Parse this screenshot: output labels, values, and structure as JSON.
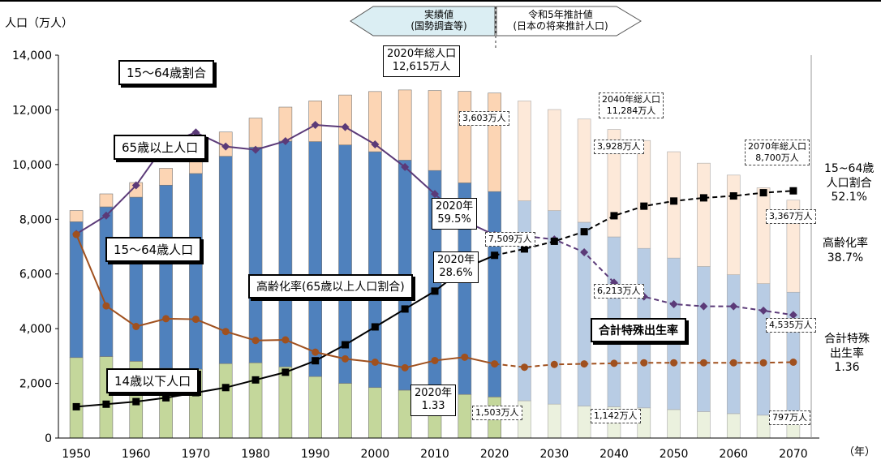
{
  "y_axis_label": "人口（万人）",
  "x_axis_unit": "（年）",
  "header": {
    "actual": {
      "line1": "実績値",
      "line2": "(国勢調査等)"
    },
    "projection": {
      "line1": "令和5年推計値",
      "line2": "(日本の将来推計人口)"
    }
  },
  "legend_boxes": {
    "working_ratio": "15～64歳割合",
    "elderly_pop": "65歳以上人口",
    "working_pop": "15～64歳人口",
    "child_pop": "14歳以下人口",
    "aging_rate": "高齢化率(65歳以上人口割合)",
    "fertility": "合計特殊出生率"
  },
  "annotations": {
    "total_2020": {
      "line1": "2020年総人口",
      "line2": "12,615万人"
    },
    "total_2040": {
      "line1": "2040年総人口",
      "line2": "11,284万人"
    },
    "total_2070": {
      "line1": "2070年総人口",
      "line2": "8,700万人"
    },
    "elderly_2020": "3,603万人",
    "working_2020": "7,509万人",
    "child_2020": "1,503万人",
    "elderly_2040": "3,928万人",
    "working_2040": "6,213万人",
    "child_2040": "1,142万人",
    "elderly_2070": "3,367万人",
    "working_2070": "4,535万人",
    "child_2070": "797万人",
    "ratio_2020": {
      "line1": "2020年",
      "line2": "59.5%"
    },
    "aging_2020": {
      "line1": "2020年",
      "line2": "28.6%"
    },
    "fertility_2020": {
      "line1": "2020年",
      "line2": "1.33"
    }
  },
  "right_labels": {
    "ratio": {
      "line1": "15~64歳",
      "line2": "人口割合",
      "line3": "52.1%"
    },
    "aging": {
      "line1": "高齢化率",
      "line2": "38.7%"
    },
    "fertility": {
      "line1": "合計特殊",
      "line2": "出生率",
      "line3": "1.36"
    }
  },
  "colors": {
    "child": "#c4d79b",
    "working": "#4f81bd",
    "elderly": "#fcd5b4",
    "child_proj": "#ebf1de",
    "working_proj": "#b8cce4",
    "elderly_proj": "#fde9d9",
    "ratio_line": "#5b3a78",
    "aging_line": "#000000",
    "fertility_line": "#a0501e"
  },
  "chart_data": {
    "type": "bar",
    "title": "",
    "xlabel": "（年）",
    "ylabel": "人口（万人）",
    "ylim": [
      0,
      14000
    ],
    "yticks": [
      0,
      2000,
      4000,
      6000,
      8000,
      10000,
      12000,
      14000
    ],
    "xticks": [
      1950,
      1960,
      1970,
      1980,
      1990,
      2000,
      2010,
      2020,
      2030,
      2040,
      2050,
      2060,
      2070
    ],
    "projection_start": 2025,
    "categories": [
      1950,
      1955,
      1960,
      1965,
      1970,
      1975,
      1980,
      1985,
      1990,
      1995,
      2000,
      2005,
      2010,
      2015,
      2020,
      2025,
      2030,
      2035,
      2040,
      2045,
      2050,
      2055,
      2060,
      2065,
      2070
    ],
    "series": [
      {
        "name": "14歳以下人口",
        "values": [
          2943,
          2980,
          2807,
          2553,
          2515,
          2722,
          2751,
          2603,
          2249,
          2001,
          1847,
          1752,
          1680,
          1595,
          1503,
          1363,
          1240,
          1169,
          1142,
          1103,
          1041,
          966,
          893,
          836,
          797
        ]
      },
      {
        "name": "15～64歳人口",
        "values": [
          4966,
          5473,
          6000,
          6693,
          7157,
          7581,
          7883,
          8251,
          8590,
          8716,
          8622,
          8409,
          8103,
          7735,
          7509,
          7310,
          7076,
          6722,
          6213,
          5832,
          5540,
          5307,
          5078,
          4809,
          4535
        ]
      },
      {
        "name": "65歳以上人口",
        "values": [
          411,
          475,
          535,
          618,
          733,
          887,
          1065,
          1247,
          1489,
          1826,
          2201,
          2567,
          2925,
          3347,
          3603,
          3653,
          3696,
          3773,
          3928,
          3945,
          3888,
          3777,
          3644,
          3506,
          3367
        ]
      }
    ],
    "line_series": [
      {
        "name": "15～64歳割合",
        "unit": "%",
        "values": [
          59.6,
          61.3,
          64.1,
          68.0,
          69.0,
          67.7,
          67.4,
          68.2,
          69.7,
          69.5,
          67.9,
          65.8,
          63.3,
          60.8,
          59.5,
          59.4,
          59.1,
          57.9,
          55.1,
          53.8,
          53.1,
          52.9,
          52.9,
          52.5,
          52.1
        ]
      },
      {
        "name": "高齢化率",
        "unit": "%",
        "values": [
          4.9,
          5.3,
          5.7,
          6.3,
          7.1,
          7.9,
          9.1,
          10.3,
          12.1,
          14.6,
          17.4,
          20.2,
          23.0,
          26.6,
          28.6,
          29.6,
          30.8,
          32.3,
          34.8,
          36.3,
          37.1,
          37.6,
          37.9,
          38.4,
          38.7
        ]
      },
      {
        "name": "合計特殊出生率",
        "unit": "",
        "values": [
          3.65,
          2.37,
          2.0,
          2.14,
          2.13,
          1.91,
          1.75,
          1.76,
          1.54,
          1.42,
          1.36,
          1.26,
          1.39,
          1.45,
          1.33,
          1.27,
          1.32,
          1.33,
          1.34,
          1.35,
          1.35,
          1.35,
          1.35,
          1.35,
          1.36
        ]
      }
    ]
  }
}
